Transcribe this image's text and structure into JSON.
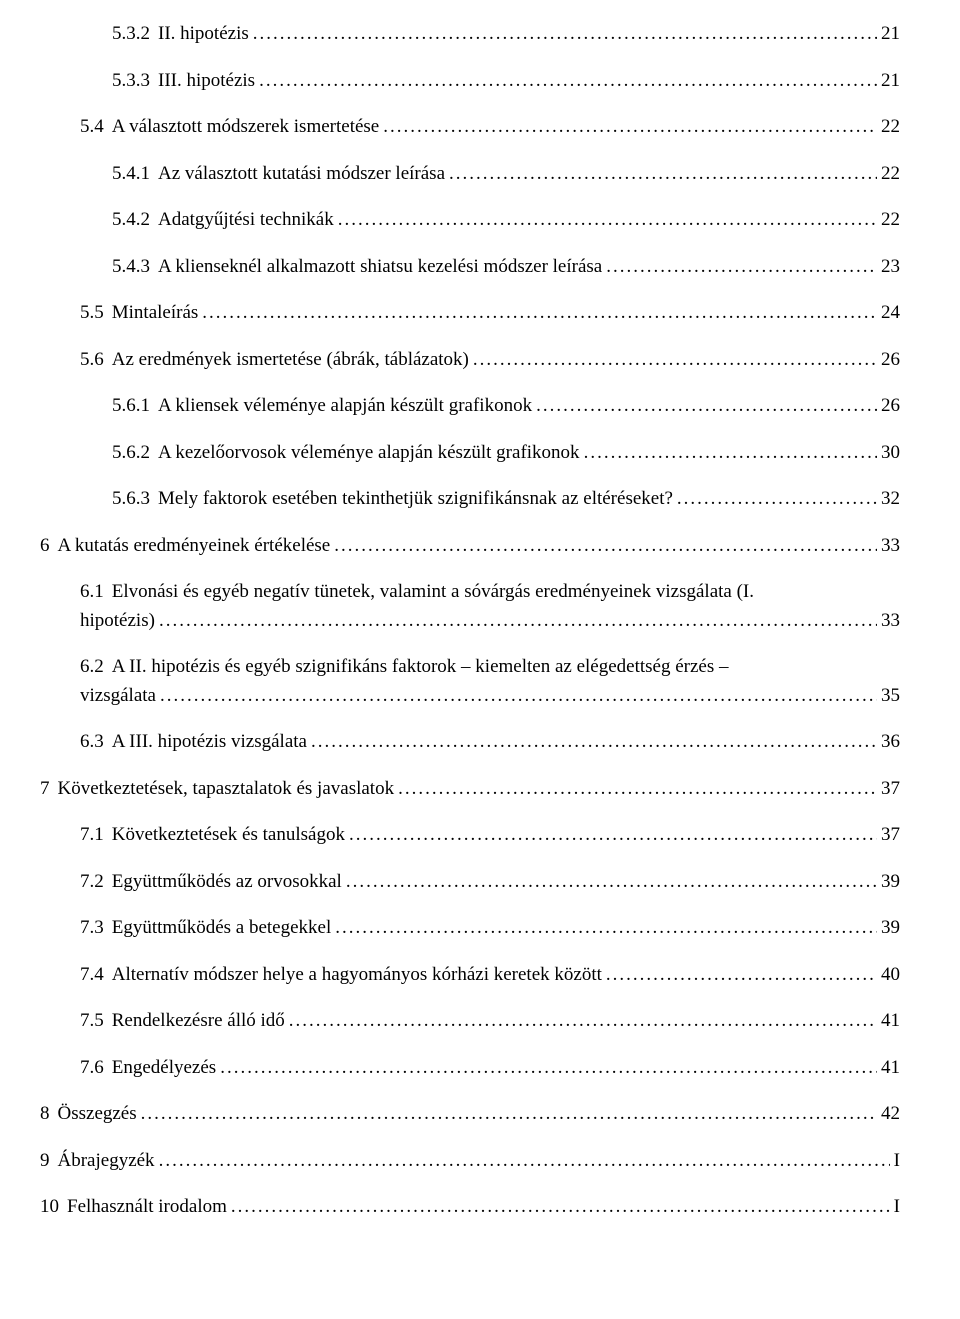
{
  "font": {
    "family": "Times New Roman",
    "size_pt": 14,
    "color": "#000000"
  },
  "background_color": "#ffffff",
  "entries": [
    {
      "indent": 2,
      "num": "5.3.2",
      "title": "II. hipotézis",
      "page": "21"
    },
    {
      "indent": 2,
      "num": "5.3.3",
      "title": "III. hipotézis",
      "page": "21"
    },
    {
      "indent": 1,
      "num": "5.4",
      "title": "A választott módszerek ismertetése",
      "page": "22"
    },
    {
      "indent": 2,
      "num": "5.4.1",
      "title": "Az választott kutatási módszer leírása",
      "page": "22"
    },
    {
      "indent": 2,
      "num": "5.4.2",
      "title": "Adatgyűjtési technikák",
      "page": "22"
    },
    {
      "indent": 2,
      "num": "5.4.3",
      "title": "A klienseknél alkalmazott shiatsu kezelési módszer leírása",
      "page": "23"
    },
    {
      "indent": 1,
      "num": "5.5",
      "title": "Mintaleírás",
      "page": "24"
    },
    {
      "indent": 1,
      "num": "5.6",
      "title": "Az eredmények ismertetése (ábrák, táblázatok)",
      "page": "26"
    },
    {
      "indent": 2,
      "num": "5.6.1",
      "title": "A kliensek véleménye alapján készült grafikonok",
      "page": "26"
    },
    {
      "indent": 2,
      "num": "5.6.2",
      "title": "A kezelőorvosok véleménye alapján készült grafikonok",
      "page": "30"
    },
    {
      "indent": 2,
      "num": "5.6.3",
      "title": "Mely faktorok esetében tekinthetjük szignifikánsnak az eltéréseket?",
      "page": "32"
    },
    {
      "indent": 0,
      "num": "6",
      "title": "A kutatás eredményeinek értékelése",
      "page": " 33"
    },
    {
      "indent": 1,
      "num": "6.1",
      "title_l1": "Elvonási és egyéb negatív tünetek, valamint a sóvárgás eredményeinek vizsgálata (I.",
      "title_l2": "hipotézis)",
      "page": "33",
      "wrap": true
    },
    {
      "indent": 1,
      "num": "6.2",
      "title_l1": "A II. hipotézis és egyéb szignifikáns faktorok – kiemelten az elégedettség érzés –",
      "title_l2": "vizsgálata",
      "page": "35",
      "wrap": true
    },
    {
      "indent": 1,
      "num": "6.3",
      "title": "A III. hipotézis vizsgálata",
      "page": "36"
    },
    {
      "indent": 0,
      "num": "7",
      "title": "Következtetések, tapasztalatok és javaslatok",
      "page": " 37"
    },
    {
      "indent": 1,
      "num": "7.1",
      "title": "Következtetések és tanulságok",
      "page": "37"
    },
    {
      "indent": 1,
      "num": "7.2",
      "title": "Együttműködés az orvosokkal",
      "page": "39"
    },
    {
      "indent": 1,
      "num": "7.3",
      "title": "Együttműködés a betegekkel",
      "page": "39"
    },
    {
      "indent": 1,
      "num": "7.4",
      "title": "Alternatív módszer helye a hagyományos kórházi keretek között",
      "page": "40"
    },
    {
      "indent": 1,
      "num": "7.5",
      "title": "Rendelkezésre álló idő",
      "page": "41"
    },
    {
      "indent": 1,
      "num": "7.6",
      "title": "Engedélyezés",
      "page": "41"
    },
    {
      "indent": 0,
      "num": "8",
      "title": "Összegzés",
      "page": " 42"
    },
    {
      "indent": 0,
      "num": "9",
      "title": "Ábrajegyzék",
      "page": "I"
    },
    {
      "indent": 0,
      "num": "10",
      "title": "Felhasznált irodalom",
      "page": " I"
    }
  ]
}
